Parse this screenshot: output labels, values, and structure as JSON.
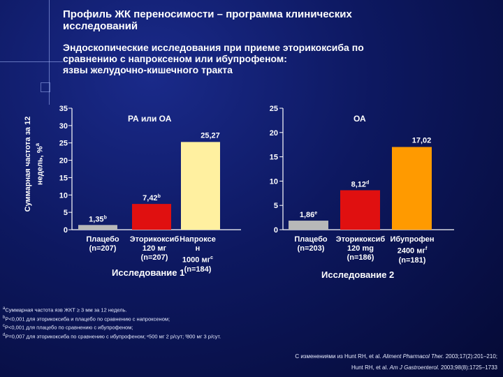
{
  "header": {
    "title_line1": "Профиль ЖК переносимости – программа клинических",
    "title_line2": "исследований",
    "subtitle_line1": "Эндоскопические исследования при приеме эторикоксиба по",
    "subtitle_line2": "сравнению с напроксеном или ибупрофеном:",
    "subtitle_line3": "язвы желудочно-кишечного тракта"
  },
  "ylabel": {
    "line1": "Суммарная частота за 12",
    "line2": "недель, %",
    "sup": "a"
  },
  "colors": {
    "placebo": "#b8b8b8",
    "etoricoxib": "#e01010",
    "naproxen": "#fff0a0",
    "ibuprofen": "#ff9a00",
    "axis": "#ffffff"
  },
  "chart_data": [
    {
      "type": "bar",
      "title": "РА или ОА",
      "study": "Исследование 1",
      "ylim": [
        0,
        35
      ],
      "yticks": [
        "0",
        "5",
        "10",
        "15",
        "20",
        "25",
        "30",
        "35"
      ],
      "categories": [
        {
          "lines": [
            "Плацебо",
            "(n=207)"
          ]
        },
        {
          "lines": [
            "Эторикоксиб",
            "120 мг",
            "(n=207)"
          ]
        },
        {
          "lines": [
            "Напроксе",
            "н",
            "1000 мг",
            "(n=184)"
          ],
          "sup_line": 2,
          "sup": "c"
        }
      ],
      "values": [
        1.35,
        7.42,
        25.27
      ],
      "labels": [
        "1,35",
        "7,42",
        "25,27"
      ],
      "label_sups": [
        "b",
        "b",
        ""
      ],
      "color_keys": [
        "placebo",
        "etoricoxib",
        "naproxen"
      ]
    },
    {
      "type": "bar",
      "title": "ОА",
      "study": "Исследование 2",
      "ylim": [
        0,
        25
      ],
      "yticks": [
        "0",
        "5",
        "10",
        "15",
        "20",
        "25"
      ],
      "categories": [
        {
          "lines": [
            "Плацебо",
            "(n=203)"
          ]
        },
        {
          "lines": [
            "Эторикоксиб",
            "120 mg",
            "(n=186)"
          ]
        },
        {
          "lines": [
            "Ибупрофен",
            "2400 мг",
            "(n=181)"
          ],
          "sup_line": 1,
          "sup": "f"
        }
      ],
      "values": [
        1.86,
        8.12,
        17.02
      ],
      "labels": [
        "1,86",
        "8,12",
        "17,02"
      ],
      "label_sups": [
        "e",
        "d",
        ""
      ],
      "color_keys": [
        "placebo",
        "etoricoxib",
        "ibuprofen"
      ]
    }
  ],
  "footnotes": [
    {
      "sup": "a",
      "text": "Суммарная частота язв ЖКТ ≥ 3 мм за 12 недель."
    },
    {
      "sup": "b",
      "text": "P<0,001 для эторикоксиба и плацебо по сравнению с напроксеном;"
    },
    {
      "sup": "c",
      "text": "P<0,001 для плацебо по сравнению с ибупрофеном;"
    },
    {
      "sup": "d",
      "text": "P=0,007 для эторикоксиба по сравнению с ибупрофеном; ᵉ500 мг 2 р/сут; ᶠ800 мг 3 р/сут."
    }
  ],
  "references": {
    "line1_prefix": "С изменениями из Hunt RH, et al. ",
    "line1_journal": "Aliment Pharmacol Ther.",
    "line1_suffix": " 2003;17(2):201–210;",
    "line2_prefix": "Hunt RH, et al. ",
    "line2_journal": "Am J Gastroenterol.",
    "line2_suffix": " 2003;98(8):1725–1733"
  }
}
